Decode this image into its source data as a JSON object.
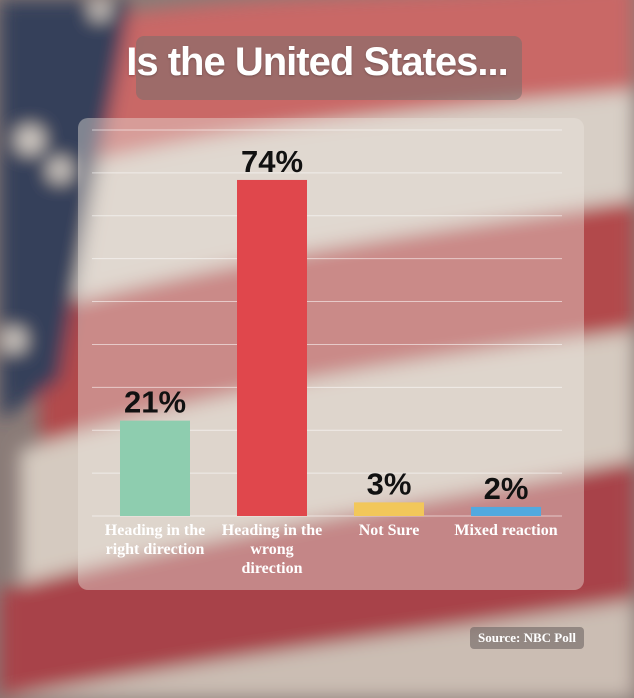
{
  "colors": {
    "bar_right_direction": "#8ecdaf",
    "bar_wrong_direction": "#e0474c",
    "bar_not_sure": "#f2c75a",
    "bar_mixed": "#52a9df",
    "gridline": "#ffffff"
  },
  "chart_data": {
    "type": "bar",
    "title": "Is the United States...",
    "categories": [
      [
        "Heading in the",
        "right direction"
      ],
      [
        "Heading in the",
        "wrong",
        "direction"
      ],
      [
        "Not Sure"
      ],
      [
        "Mixed reaction"
      ]
    ],
    "values": [
      21,
      74,
      3,
      2
    ],
    "data_labels": [
      "21%",
      "74%",
      "3%",
      "2%"
    ],
    "ylim": [
      0,
      85
    ],
    "grid": true,
    "legend": "none",
    "source": "Source: NBC Poll"
  }
}
